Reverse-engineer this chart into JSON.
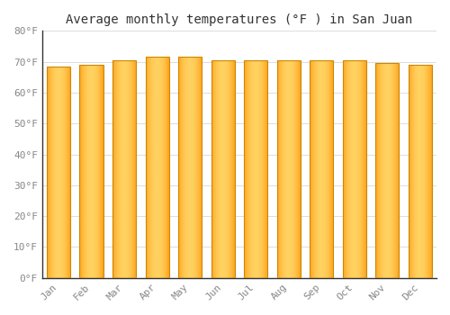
{
  "title": "Average monthly temperatures (°F ) in San Juan",
  "months": [
    "Jan",
    "Feb",
    "Mar",
    "Apr",
    "May",
    "Jun",
    "Jul",
    "Aug",
    "Sep",
    "Oct",
    "Nov",
    "Dec"
  ],
  "values": [
    68.5,
    69.0,
    70.5,
    71.5,
    71.5,
    70.5,
    70.5,
    70.5,
    70.5,
    70.5,
    69.5,
    69.0
  ],
  "bar_color": "#FFA520",
  "bar_edge_color": "#CC8800",
  "bar_highlight": "#FFD060",
  "background_color": "#FFFFFF",
  "grid_color": "#DDDDDD",
  "ylim": [
    0,
    80
  ],
  "yticks": [
    0,
    10,
    20,
    30,
    40,
    50,
    60,
    70,
    80
  ],
  "ytick_labels": [
    "0°F",
    "10°F",
    "20°F",
    "30°F",
    "40°F",
    "50°F",
    "60°F",
    "70°F",
    "80°F"
  ],
  "title_fontsize": 10,
  "tick_fontsize": 8,
  "title_color": "#333333",
  "tick_color": "#888888",
  "bar_width": 0.72,
  "gap_color": "#FFFFFF"
}
